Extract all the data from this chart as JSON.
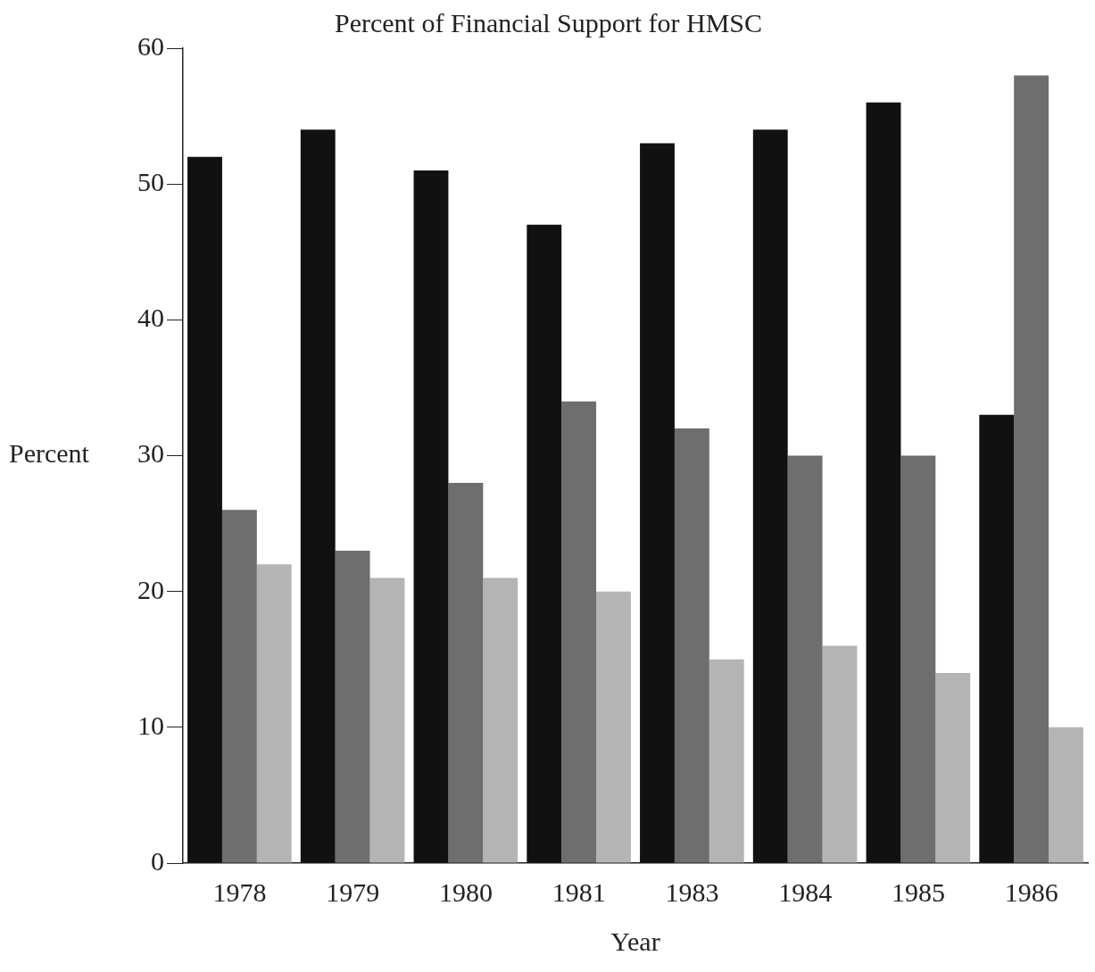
{
  "chart_data": {
    "type": "bar",
    "title": "Percent of Financial Support for HMSC",
    "xlabel": "Year",
    "ylabel": "Percent",
    "categories": [
      "1978",
      "1979",
      "1980",
      "1981",
      "1983",
      "1984",
      "1985",
      "1986"
    ],
    "series": [
      {
        "color": "#111111",
        "values": [
          52,
          54,
          51,
          47,
          53,
          54,
          56,
          33
        ]
      },
      {
        "color": "#6e6e6e",
        "values": [
          26,
          23,
          28,
          34,
          32,
          30,
          30,
          58
        ]
      },
      {
        "color": "#b4b4b4",
        "values": [
          22,
          21,
          21,
          20,
          15,
          16,
          14,
          10
        ]
      }
    ],
    "ylim": [
      0,
      60
    ],
    "yticks": [
      0,
      10,
      20,
      30,
      40,
      50,
      60
    ],
    "grid": false,
    "legend": false
  }
}
